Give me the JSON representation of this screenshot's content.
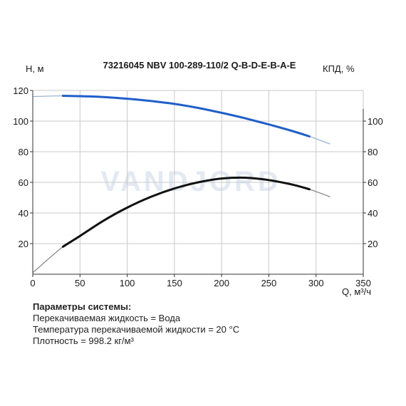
{
  "chart_data": {
    "type": "line",
    "title": "73216045 NBV 100-289-110/2 Q-B-D-E-B-A-E",
    "ylabel_left": "H, м",
    "ylabel_right": "КПД, %",
    "xlabel": "Q, м³/ч",
    "xlim": [
      0,
      350
    ],
    "ylim_left": [
      0,
      120
    ],
    "ylim_right": [
      0,
      120
    ],
    "x_ticks": [
      "0",
      "50",
      "100",
      "150",
      "200",
      "250",
      "300",
      "350"
    ],
    "y_left_ticks": [
      "20",
      "40",
      "60",
      "80",
      "100",
      "120"
    ],
    "y_right_ticks": [
      "20",
      "40",
      "60",
      "80",
      "100"
    ],
    "grid": true,
    "watermark": "VANDJORD",
    "series": [
      {
        "axis": "left",
        "color": "#1f5fc9",
        "extension_color": "#9db3d6",
        "x": [
          0,
          32,
          50,
          75,
          100,
          125,
          150,
          175,
          200,
          225,
          250,
          275,
          293,
          315
        ],
        "y": [
          116,
          116.5,
          116.3,
          115.7,
          114.6,
          113.1,
          111.2,
          108.6,
          105.4,
          101.8,
          97.8,
          93.5,
          90,
          85
        ],
        "main_range": [
          32,
          293
        ]
      },
      {
        "axis": "right",
        "color": "#111111",
        "extension_color": "#8a8a8a",
        "x": [
          0,
          32,
          50,
          75,
          100,
          125,
          150,
          175,
          200,
          225,
          250,
          275,
          293,
          315
        ],
        "y": [
          1,
          18,
          25,
          35,
          43.5,
          50.5,
          56,
          60,
          62.5,
          63,
          61.5,
          58.5,
          55.5,
          50.5
        ],
        "main_range": [
          32,
          293
        ]
      }
    ],
    "colors": {
      "grid": "#c9c9c9",
      "axis": "#333333"
    }
  },
  "params": {
    "title": "Параметры системы:",
    "lines": [
      "Перекачиваемая жидкость = Вода",
      "Температура перекачиваемой жидкости = 20 °C",
      "Плотность = 998.2 кг/м³"
    ]
  }
}
